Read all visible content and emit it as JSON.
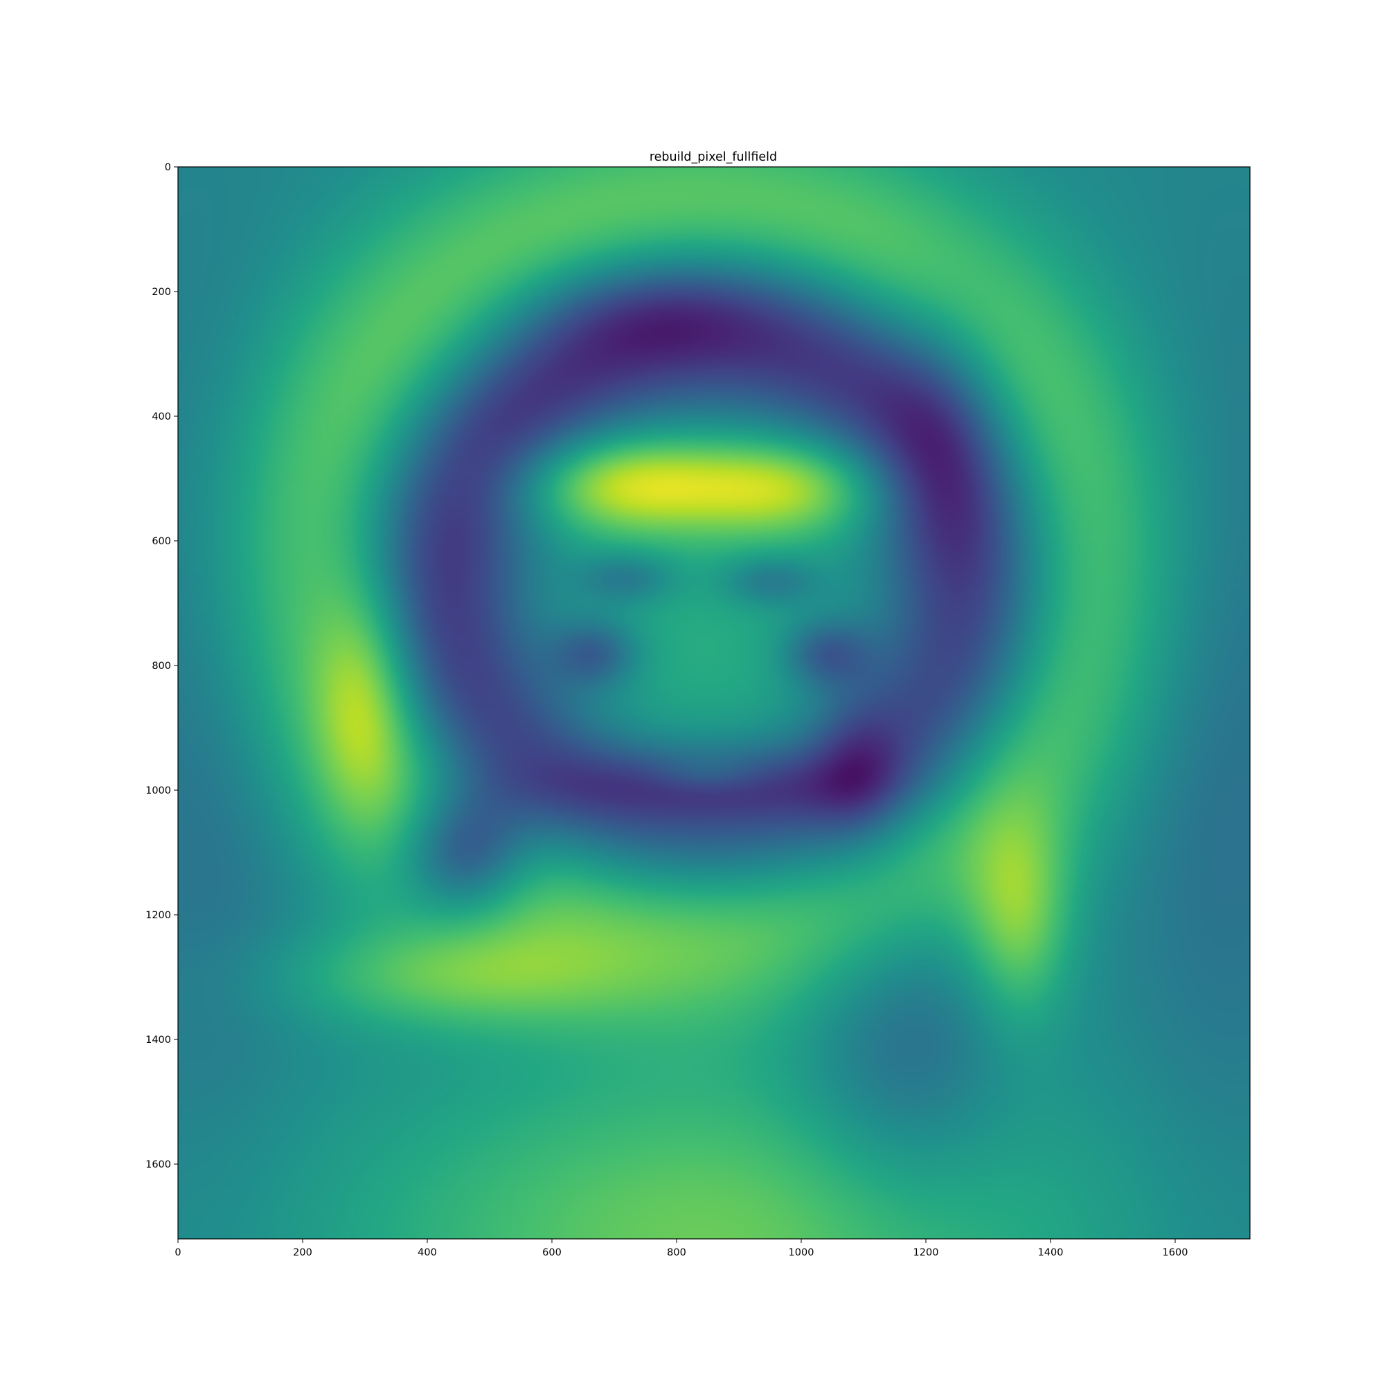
{
  "chart_data": {
    "type": "heatmap",
    "title": "rebuild_pixel_fullfield",
    "xlabel": "",
    "ylabel": "",
    "xlim": [
      0,
      1720
    ],
    "ylim": [
      1720,
      0
    ],
    "x_ticks": [
      0,
      200,
      400,
      600,
      800,
      1000,
      1200,
      1400,
      1600
    ],
    "y_ticks": [
      0,
      200,
      400,
      600,
      800,
      1000,
      1200,
      1400,
      1600
    ],
    "colormap": "viridis",
    "grid": false,
    "value_range": [
      0,
      1
    ],
    "background_level": 0.47,
    "blobs": [
      {
        "name": "outer-ring",
        "type": "ring",
        "cx": 830,
        "cy": 640,
        "rx": 600,
        "ry": 560,
        "width": 130,
        "amp": 0.3
      },
      {
        "name": "dark-arch",
        "type": "ring",
        "cx": 850,
        "cy": 660,
        "rx": 430,
        "ry": 400,
        "width": 95,
        "amp": -0.42
      },
      {
        "name": "arch-darkest-left",
        "type": "gauss",
        "cx": 760,
        "cy": 230,
        "sx": 140,
        "sy": 60,
        "amp": -0.12
      },
      {
        "name": "arch-darkest-right",
        "type": "gauss",
        "cx": 1230,
        "cy": 440,
        "sx": 70,
        "sy": 150,
        "amp": -0.14
      },
      {
        "name": "face",
        "type": "gauss",
        "cx": 840,
        "cy": 800,
        "sx": 230,
        "sy": 270,
        "amp": 0.15
      },
      {
        "name": "forehead-left",
        "type": "gauss",
        "cx": 720,
        "cy": 510,
        "sx": 120,
        "sy": 55,
        "amp": 0.38
      },
      {
        "name": "forehead-right",
        "type": "gauss",
        "cx": 970,
        "cy": 515,
        "sx": 115,
        "sy": 55,
        "amp": 0.34
      },
      {
        "name": "brow-left",
        "type": "gauss",
        "cx": 720,
        "cy": 660,
        "sx": 55,
        "sy": 30,
        "amp": -0.18
      },
      {
        "name": "brow-right",
        "type": "gauss",
        "cx": 950,
        "cy": 665,
        "sx": 55,
        "sy": 30,
        "amp": -0.18
      },
      {
        "name": "eye-left",
        "type": "gauss",
        "cx": 670,
        "cy": 780,
        "sx": 50,
        "sy": 40,
        "amp": -0.25
      },
      {
        "name": "eye-right",
        "type": "gauss",
        "cx": 1040,
        "cy": 780,
        "sx": 50,
        "sy": 40,
        "amp": -0.25
      },
      {
        "name": "mouth",
        "type": "gauss",
        "cx": 850,
        "cy": 990,
        "sx": 180,
        "sy": 40,
        "amp": -0.18
      },
      {
        "name": "lip-highlight",
        "type": "gauss",
        "cx": 850,
        "cy": 975,
        "sx": 60,
        "sy": 20,
        "amp": 0.1
      },
      {
        "name": "left-hair-patch",
        "type": "gauss",
        "cx": 300,
        "cy": 850,
        "sx": 55,
        "sy": 130,
        "amp": 0.22
      },
      {
        "name": "left-dark-spot",
        "type": "gauss",
        "cx": 460,
        "cy": 1100,
        "sx": 70,
        "sy": 70,
        "amp": -0.4
      },
      {
        "name": "right-dark-patch",
        "type": "gauss",
        "cx": 1090,
        "cy": 960,
        "sx": 50,
        "sy": 80,
        "amp": -0.15
      },
      {
        "name": "right-cheek-patch",
        "type": "gauss",
        "cx": 1350,
        "cy": 1210,
        "sx": 60,
        "sy": 120,
        "amp": 0.28
      },
      {
        "name": "shoulder-left",
        "type": "gauss",
        "cx": 430,
        "cy": 1300,
        "sx": 190,
        "sy": 60,
        "amp": 0.22
      },
      {
        "name": "neck-dark",
        "type": "gauss",
        "cx": 1160,
        "cy": 1420,
        "sx": 120,
        "sy": 180,
        "amp": -0.18
      },
      {
        "name": "bottom-glow",
        "type": "gauss",
        "cx": 860,
        "cy": 1720,
        "sx": 420,
        "sy": 200,
        "amp": 0.3
      },
      {
        "name": "side-dark-left",
        "type": "gauss",
        "cx": 50,
        "cy": 900,
        "sx": 120,
        "sy": 500,
        "amp": -0.1
      },
      {
        "name": "side-dark-right",
        "type": "gauss",
        "cx": 1680,
        "cy": 950,
        "sx": 120,
        "sy": 500,
        "amp": -0.1
      }
    ]
  }
}
